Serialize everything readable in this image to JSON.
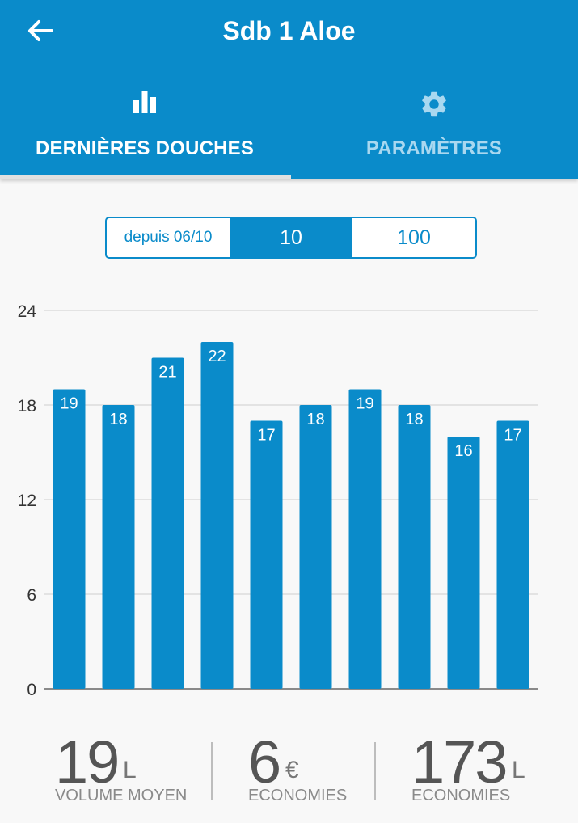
{
  "app_bar": {
    "title": "Sdb 1 Aloe",
    "back_icon": "arrow-left-icon"
  },
  "tabs": [
    {
      "label": "DERNIÈRES DOUCHES",
      "icon": "bar-chart-icon",
      "active": true
    },
    {
      "label": "PARAMÈTRES",
      "icon": "gear-icon",
      "active": false
    }
  ],
  "range_selector": {
    "options": [
      "depuis 06/10",
      "10",
      "100"
    ],
    "selected": "10"
  },
  "chart_data": {
    "type": "bar",
    "values": [
      19,
      18,
      21,
      22,
      17,
      18,
      19,
      18,
      16,
      17
    ],
    "ylim": [
      0,
      24
    ],
    "yticks": [
      "0",
      "6",
      "12",
      "18",
      "24"
    ],
    "grid": true,
    "bar_color": "#0a8bca"
  },
  "stats": [
    {
      "value": "19",
      "unit": "L",
      "label": "VOLUME MOYEN"
    },
    {
      "value": "6",
      "unit": "€",
      "label": "ECONOMIES"
    },
    {
      "value": "173",
      "unit": "L",
      "label": "ECONOMIES"
    }
  ],
  "colors": {
    "primary": "#0a8bca",
    "background": "#f8f8f8",
    "inactive_tab_text": "#a9d8f0"
  }
}
